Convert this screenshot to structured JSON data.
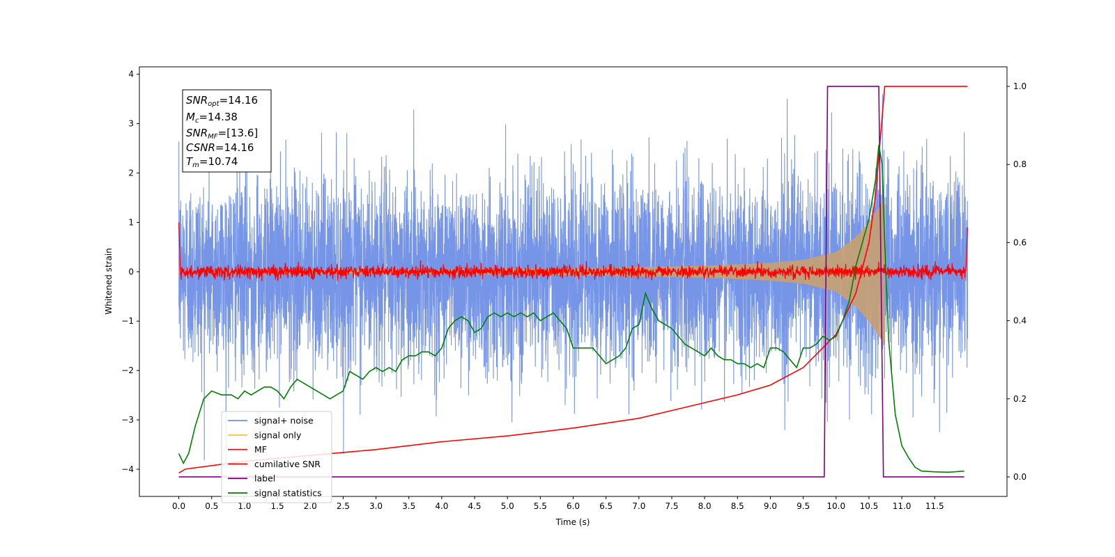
{
  "chart_data": {
    "type": "line",
    "xlabel": "Time (s)",
    "ylabel_left": "Whitened strain",
    "xlim": [
      -0.6,
      12.6
    ],
    "ylim_left": [
      -4.55,
      4.15
    ],
    "ylim_right": [
      -0.05,
      1.05
    ],
    "x_ticks": [
      0.0,
      0.5,
      1.0,
      1.5,
      2.0,
      2.5,
      3.0,
      3.5,
      4.0,
      4.5,
      5.0,
      5.5,
      6.0,
      6.5,
      7.0,
      7.5,
      8.0,
      8.5,
      9.0,
      9.5,
      10.0,
      10.5,
      11.0,
      11.5
    ],
    "x_tick_labels": [
      "0.0",
      "0.5",
      "1.0",
      "1.5",
      "2.0",
      "2.5",
      "3.0",
      "3.5",
      "4.0",
      "4.5",
      "5.0",
      "5.5",
      "6.0",
      "6.5",
      "7.0",
      "7.5",
      "8.0",
      "8.5",
      "9.0",
      "9.5",
      "10.0",
      "10.5",
      "11.0",
      "11.5"
    ],
    "y_left_ticks": [
      4,
      3,
      2,
      1,
      0,
      -1,
      -2,
      -3,
      -4
    ],
    "y_left_tick_labels": [
      "4",
      "3",
      "2",
      "1",
      "0",
      "−1",
      "−2",
      "−3",
      "−4"
    ],
    "y_right_ticks": [
      1.0,
      0.8,
      0.6,
      0.4,
      0.2,
      0.0
    ],
    "y_right_tick_labels": [
      "1.0",
      "0.8",
      "0.6",
      "0.4",
      "0.2",
      "0.0"
    ],
    "info_box": {
      "snr_opt": {
        "base": "SNR",
        "sub": "opt",
        "value": "=14.16"
      },
      "mc": {
        "base": "M",
        "sub": "c",
        "value": "=14.38"
      },
      "snr_mf": {
        "base": "SNR",
        "sub": "MF",
        "value": "=[13.6]"
      },
      "csnr": {
        "base": "CSNR",
        "sub": "",
        "value": "=14.16"
      },
      "tm": {
        "base": "T",
        "sub": "m",
        "value": "=10.74"
      }
    },
    "legend": {
      "placement": "lower-left",
      "entries": [
        {
          "label": "signal+ noise",
          "color": "#6f8fe6"
        },
        {
          "label": "signal only",
          "color": "#ffc04d"
        },
        {
          "label": "MF",
          "color": "#ff0000"
        },
        {
          "label": "cumilative SNR",
          "color": "#ff0000"
        },
        {
          "label": "label",
          "color": "#800080"
        },
        {
          "label": "signal statistics",
          "color": "#008000"
        }
      ]
    },
    "series": [
      {
        "key": "signal_noise",
        "axis": "left",
        "x_range": [
          0.0,
          12.0
        ],
        "amplitude_sigma": 0.95,
        "range_approx": [
          -3.9,
          3.6
        ]
      },
      {
        "key": "signal_only",
        "axis": "left",
        "x_range": [
          0.0,
          10.74
        ],
        "envelope_points": [
          [
            0,
            0.02
          ],
          [
            2,
            0.04
          ],
          [
            4,
            0.05
          ],
          [
            6,
            0.07
          ],
          [
            8,
            0.12
          ],
          [
            9,
            0.18
          ],
          [
            9.5,
            0.24
          ],
          [
            10,
            0.4
          ],
          [
            10.3,
            0.7
          ],
          [
            10.5,
            1.0
          ],
          [
            10.6,
            1.2
          ],
          [
            10.7,
            1.4
          ],
          [
            10.74,
            1.5
          ]
        ]
      },
      {
        "key": "mf",
        "axis": "left",
        "x_range": [
          0.0,
          12.0
        ],
        "start": 1.0,
        "end": 0.9,
        "baseline_noise": 0.06
      },
      {
        "key": "cumulative_snr",
        "axis": "right",
        "points": [
          [
            0,
            0.01
          ],
          [
            0.1,
            0.02
          ],
          [
            1,
            0.04
          ],
          [
            2,
            0.055
          ],
          [
            3,
            0.07
          ],
          [
            4,
            0.09
          ],
          [
            5,
            0.105
          ],
          [
            6,
            0.125
          ],
          [
            7,
            0.15
          ],
          [
            7.5,
            0.17
          ],
          [
            8,
            0.19
          ],
          [
            8.5,
            0.21
          ],
          [
            9,
            0.235
          ],
          [
            9.5,
            0.28
          ],
          [
            10,
            0.365
          ],
          [
            10.3,
            0.47
          ],
          [
            10.5,
            0.6
          ],
          [
            10.6,
            0.72
          ],
          [
            10.65,
            0.82
          ],
          [
            10.7,
            0.92
          ],
          [
            10.74,
            1.0
          ],
          [
            12,
            1.0
          ]
        ]
      },
      {
        "key": "label",
        "axis": "right",
        "points": [
          [
            0,
            0
          ],
          [
            9.82,
            0
          ],
          [
            9.87,
            1
          ],
          [
            10.65,
            1
          ],
          [
            10.72,
            0
          ],
          [
            11.95,
            0
          ]
        ]
      },
      {
        "key": "signal_statistics",
        "axis": "right",
        "points": [
          [
            0,
            0.06
          ],
          [
            0.07,
            0.035
          ],
          [
            0.15,
            0.06
          ],
          [
            0.25,
            0.13
          ],
          [
            0.38,
            0.2
          ],
          [
            0.5,
            0.22
          ],
          [
            0.65,
            0.21
          ],
          [
            0.8,
            0.21
          ],
          [
            0.9,
            0.2
          ],
          [
            1.0,
            0.22
          ],
          [
            1.1,
            0.21
          ],
          [
            1.2,
            0.22
          ],
          [
            1.3,
            0.23
          ],
          [
            1.4,
            0.23
          ],
          [
            1.5,
            0.22
          ],
          [
            1.6,
            0.2
          ],
          [
            1.7,
            0.23
          ],
          [
            1.8,
            0.25
          ],
          [
            1.9,
            0.24
          ],
          [
            2.0,
            0.23
          ],
          [
            2.1,
            0.22
          ],
          [
            2.2,
            0.21
          ],
          [
            2.3,
            0.2
          ],
          [
            2.4,
            0.21
          ],
          [
            2.5,
            0.22
          ],
          [
            2.6,
            0.27
          ],
          [
            2.7,
            0.26
          ],
          [
            2.8,
            0.25
          ],
          [
            2.9,
            0.27
          ],
          [
            3.0,
            0.28
          ],
          [
            3.1,
            0.27
          ],
          [
            3.2,
            0.28
          ],
          [
            3.3,
            0.27
          ],
          [
            3.4,
            0.3
          ],
          [
            3.5,
            0.31
          ],
          [
            3.6,
            0.31
          ],
          [
            3.7,
            0.32
          ],
          [
            3.8,
            0.32
          ],
          [
            3.9,
            0.31
          ],
          [
            4.0,
            0.33
          ],
          [
            4.1,
            0.38
          ],
          [
            4.2,
            0.4
          ],
          [
            4.3,
            0.41
          ],
          [
            4.4,
            0.4
          ],
          [
            4.5,
            0.37
          ],
          [
            4.6,
            0.38
          ],
          [
            4.7,
            0.41
          ],
          [
            4.8,
            0.42
          ],
          [
            4.9,
            0.41
          ],
          [
            5.0,
            0.42
          ],
          [
            5.1,
            0.41
          ],
          [
            5.2,
            0.42
          ],
          [
            5.3,
            0.41
          ],
          [
            5.4,
            0.42
          ],
          [
            5.5,
            0.4
          ],
          [
            5.6,
            0.41
          ],
          [
            5.7,
            0.42
          ],
          [
            5.8,
            0.4
          ],
          [
            5.9,
            0.38
          ],
          [
            6.0,
            0.33
          ],
          [
            6.1,
            0.33
          ],
          [
            6.2,
            0.33
          ],
          [
            6.3,
            0.33
          ],
          [
            6.4,
            0.31
          ],
          [
            6.5,
            0.29
          ],
          [
            6.6,
            0.3
          ],
          [
            6.7,
            0.31
          ],
          [
            6.8,
            0.33
          ],
          [
            6.9,
            0.38
          ],
          [
            7.0,
            0.39
          ],
          [
            7.1,
            0.47
          ],
          [
            7.2,
            0.43
          ],
          [
            7.3,
            0.4
          ],
          [
            7.4,
            0.39
          ],
          [
            7.5,
            0.38
          ],
          [
            7.6,
            0.36
          ],
          [
            7.7,
            0.34
          ],
          [
            7.8,
            0.33
          ],
          [
            7.9,
            0.32
          ],
          [
            8.0,
            0.31
          ],
          [
            8.1,
            0.33
          ],
          [
            8.2,
            0.31
          ],
          [
            8.3,
            0.3
          ],
          [
            8.4,
            0.3
          ],
          [
            8.5,
            0.29
          ],
          [
            8.6,
            0.29
          ],
          [
            8.7,
            0.28
          ],
          [
            8.8,
            0.29
          ],
          [
            8.9,
            0.28
          ],
          [
            9.0,
            0.33
          ],
          [
            9.1,
            0.33
          ],
          [
            9.2,
            0.32
          ],
          [
            9.3,
            0.3
          ],
          [
            9.4,
            0.28
          ],
          [
            9.5,
            0.33
          ],
          [
            9.6,
            0.33
          ],
          [
            9.7,
            0.34
          ],
          [
            9.8,
            0.36
          ],
          [
            9.9,
            0.35
          ],
          [
            10.0,
            0.36
          ],
          [
            10.1,
            0.4
          ],
          [
            10.2,
            0.45
          ],
          [
            10.3,
            0.54
          ],
          [
            10.4,
            0.6
          ],
          [
            10.5,
            0.66
          ],
          [
            10.6,
            0.76
          ],
          [
            10.65,
            0.85
          ],
          [
            10.7,
            0.8
          ],
          [
            10.74,
            0.6
          ],
          [
            10.8,
            0.35
          ],
          [
            10.9,
            0.16
          ],
          [
            11.0,
            0.08
          ],
          [
            11.1,
            0.05
          ],
          [
            11.2,
            0.025
          ],
          [
            11.3,
            0.015
          ],
          [
            11.5,
            0.013
          ],
          [
            11.7,
            0.012
          ],
          [
            11.8,
            0.013
          ],
          [
            11.95,
            0.015
          ]
        ]
      }
    ]
  }
}
